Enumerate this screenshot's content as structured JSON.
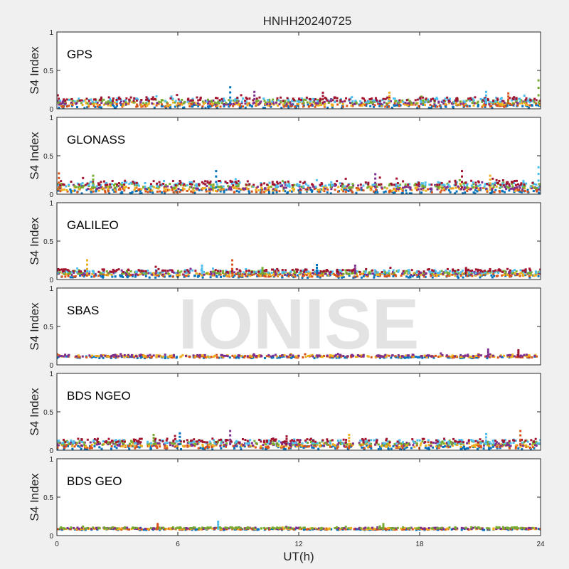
{
  "figure": {
    "title": "HNHH20240725",
    "xlabel": "UT(h)",
    "watermark": "IONISE"
  },
  "colors": {
    "figure_bg": "#f0f0f0",
    "axes_bg": "#ffffff",
    "axis": "#262626",
    "watermark": "#d9d9d9",
    "series_palette": [
      "#0072BD",
      "#D95319",
      "#EDB120",
      "#7E2F8E",
      "#77AC30",
      "#4DBEEE",
      "#A2142F"
    ]
  },
  "chart_data": [
    {
      "type": "scatter",
      "name": "GPS",
      "ylabel": "S4 Index",
      "xlim": [
        0,
        24
      ],
      "ylim": [
        0,
        1
      ],
      "xticks": [
        0,
        6,
        12,
        18,
        24
      ],
      "yticks": [
        0,
        0.5,
        1
      ],
      "ytick_labels": [
        "0",
        "0.5",
        "1"
      ],
      "grid": false,
      "baseline_s4": 0.08,
      "noise": 0.025,
      "series_count": 7,
      "spikes": [
        {
          "x": 8.6,
          "y": 0.28
        },
        {
          "x": 9.8,
          "y": 0.22
        },
        {
          "x": 13.2,
          "y": 0.21
        },
        {
          "x": 16.5,
          "y": 0.21
        },
        {
          "x": 21.3,
          "y": 0.22
        },
        {
          "x": 22.4,
          "y": 0.2
        },
        {
          "x": 23.9,
          "y": 0.37
        }
      ]
    },
    {
      "type": "scatter",
      "name": "GLONASS",
      "ylabel": "S4 Index",
      "xlim": [
        0,
        24
      ],
      "ylim": [
        0,
        1
      ],
      "xticks": [
        0,
        6,
        12,
        18,
        24
      ],
      "yticks": [
        0,
        0.5,
        1
      ],
      "ytick_labels": [
        "0",
        "0.5",
        "1"
      ],
      "grid": false,
      "baseline_s4": 0.09,
      "noise": 0.03,
      "series_count": 7,
      "spikes": [
        {
          "x": 0.1,
          "y": 0.27
        },
        {
          "x": 1.8,
          "y": 0.24
        },
        {
          "x": 7.9,
          "y": 0.3
        },
        {
          "x": 15.8,
          "y": 0.26
        },
        {
          "x": 20.1,
          "y": 0.3
        },
        {
          "x": 21.5,
          "y": 0.24
        },
        {
          "x": 23.9,
          "y": 0.35
        }
      ]
    },
    {
      "type": "scatter",
      "name": "GALILEO",
      "ylabel": "S4 Index",
      "xlim": [
        0,
        24
      ],
      "ylim": [
        0,
        1
      ],
      "xticks": [
        0,
        6,
        12,
        18,
        24
      ],
      "yticks": [
        0,
        0.5,
        1
      ],
      "ytick_labels": [
        "0",
        "0.5",
        "1"
      ],
      "grid": false,
      "baseline_s4": 0.08,
      "noise": 0.02,
      "series_count": 7,
      "spikes": [
        {
          "x": 1.5,
          "y": 0.25
        },
        {
          "x": 7.2,
          "y": 0.18
        },
        {
          "x": 8.7,
          "y": 0.25
        },
        {
          "x": 10.2,
          "y": 0.15
        },
        {
          "x": 12.9,
          "y": 0.19
        },
        {
          "x": 14.8,
          "y": 0.18
        },
        {
          "x": 20.3,
          "y": 0.15
        }
      ]
    },
    {
      "type": "scatter",
      "name": "SBAS",
      "ylabel": "S4 Index",
      "xlim": [
        0,
        24
      ],
      "ylim": [
        0,
        1
      ],
      "xticks": [
        0,
        6,
        12,
        18,
        24
      ],
      "yticks": [
        0,
        0.5,
        1
      ],
      "ytick_labels": [
        "0",
        "0.5",
        "1"
      ],
      "grid": false,
      "baseline_s4": 0.11,
      "noise": 0.012,
      "series_count": 4,
      "spikes": [
        {
          "x": 21.4,
          "y": 0.2
        },
        {
          "x": 22.9,
          "y": 0.19
        }
      ]
    },
    {
      "type": "scatter",
      "name": "BDS NGEO",
      "ylabel": "S4 Index",
      "xlim": [
        0,
        24
      ],
      "ylim": [
        0,
        1
      ],
      "xticks": [
        0,
        6,
        12,
        18,
        24
      ],
      "yticks": [
        0,
        0.5,
        1
      ],
      "ytick_labels": [
        "0",
        "0.5",
        "1"
      ],
      "grid": false,
      "baseline_s4": 0.08,
      "noise": 0.025,
      "series_count": 7,
      "spikes": [
        {
          "x": 4.8,
          "y": 0.2
        },
        {
          "x": 6.1,
          "y": 0.22
        },
        {
          "x": 8.6,
          "y": 0.25
        },
        {
          "x": 11.4,
          "y": 0.18
        },
        {
          "x": 14.5,
          "y": 0.2
        },
        {
          "x": 21.3,
          "y": 0.21
        },
        {
          "x": 23.0,
          "y": 0.25
        }
      ]
    },
    {
      "type": "scatter",
      "name": "BDS GEO",
      "ylabel": "S4 Index",
      "xlim": [
        0,
        24
      ],
      "ylim": [
        0,
        1
      ],
      "xticks": [
        0,
        6,
        12,
        18,
        24
      ],
      "yticks": [
        0,
        0.5,
        1
      ],
      "ytick_labels": [
        "0",
        "0.5",
        "1"
      ],
      "grid": false,
      "baseline_s4": 0.09,
      "noise": 0.008,
      "series_count": 5,
      "spikes": [
        {
          "x": 8.0,
          "y": 0.18
        },
        {
          "x": 5.0,
          "y": 0.15
        },
        {
          "x": 16.2,
          "y": 0.15
        }
      ]
    }
  ]
}
